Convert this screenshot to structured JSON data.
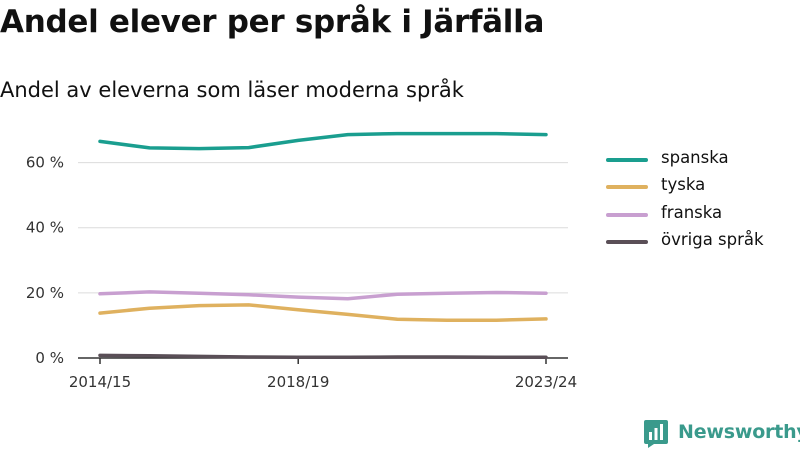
{
  "header": {
    "title": "Andel elever per språk i Järfälla",
    "subtitle": "Andel av eleverna som läser moderna språk"
  },
  "brand": {
    "name": "Newsworthy",
    "color": "#3a9a8c"
  },
  "chart_data": {
    "type": "line",
    "title": "Andel elever per språk i Järfälla",
    "subtitle": "Andel av eleverna som läser moderna språk",
    "xlabel": "",
    "ylabel": "",
    "x": [
      "2014/15",
      "2015/16",
      "2016/17",
      "2017/18",
      "2018/19",
      "2019/20",
      "2020/21",
      "2021/22",
      "2022/23",
      "2023/24"
    ],
    "x_tick_labels": [
      "2014/15",
      "2018/19",
      "2023/24"
    ],
    "y_ticks": [
      0,
      20,
      40,
      60
    ],
    "y_tick_labels": [
      "0 %",
      "20 %",
      "40 %",
      "60 %"
    ],
    "ylim": [
      0,
      70
    ],
    "grid": true,
    "legend": "right",
    "series": [
      {
        "name": "spanska",
        "color": "#1a9e8f",
        "values": [
          66.5,
          64.5,
          64.3,
          64.6,
          66.8,
          68.6,
          68.9,
          68.9,
          68.9,
          68.6
        ]
      },
      {
        "name": "tyska",
        "color": "#dfb15f",
        "values": [
          13.8,
          15.3,
          16.1,
          16.3,
          14.8,
          13.4,
          11.9,
          11.6,
          11.6,
          12.0
        ]
      },
      {
        "name": "franska",
        "color": "#c89fd0",
        "values": [
          19.7,
          20.3,
          19.9,
          19.4,
          18.7,
          18.2,
          19.6,
          19.9,
          20.1,
          19.9
        ]
      },
      {
        "name": "övriga språk",
        "color": "#5a4f57",
        "values": [
          0.8,
          0.7,
          0.5,
          0.3,
          0.2,
          0.2,
          0.3,
          0.3,
          0.2,
          0.2
        ]
      }
    ]
  }
}
